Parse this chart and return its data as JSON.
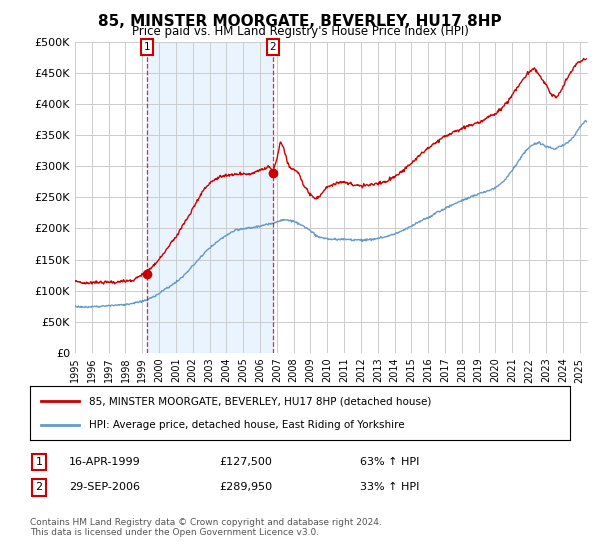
{
  "title": "85, MINSTER MOORGATE, BEVERLEY, HU17 8HP",
  "subtitle": "Price paid vs. HM Land Registry's House Price Index (HPI)",
  "red_label": "85, MINSTER MOORGATE, BEVERLEY, HU17 8HP (detached house)",
  "blue_label": "HPI: Average price, detached house, East Riding of Yorkshire",
  "annotation1_label": "1",
  "annotation1_date": "16-APR-1999",
  "annotation1_price": "£127,500",
  "annotation1_hpi": "63% ↑ HPI",
  "annotation2_label": "2",
  "annotation2_date": "29-SEP-2006",
  "annotation2_price": "£289,950",
  "annotation2_hpi": "33% ↑ HPI",
  "footnote": "Contains HM Land Registry data © Crown copyright and database right 2024.\nThis data is licensed under the Open Government Licence v3.0.",
  "ylim": [
    0,
    500000
  ],
  "yticks": [
    0,
    50000,
    100000,
    150000,
    200000,
    250000,
    300000,
    350000,
    400000,
    450000,
    500000
  ],
  "red_color": "#cc0000",
  "blue_color": "#6699cc",
  "shade_color": "#ddeeff",
  "background_color": "#ffffff",
  "grid_color": "#cccccc",
  "sale1_year": 1999.29,
  "sale1_price": 127500,
  "sale2_year": 2006.75,
  "sale2_price": 289950,
  "blue_keypoints": [
    [
      1995.0,
      72000
    ],
    [
      1995.5,
      71000
    ],
    [
      1996.0,
      72000
    ],
    [
      1996.5,
      73000
    ],
    [
      1997.0,
      74000
    ],
    [
      1997.5,
      75000
    ],
    [
      1998.0,
      76000
    ],
    [
      1998.5,
      78000
    ],
    [
      1999.0,
      80000
    ],
    [
      1999.5,
      85000
    ],
    [
      2000.0,
      93000
    ],
    [
      2000.5,
      102000
    ],
    [
      2001.0,
      112000
    ],
    [
      2001.5,
      123000
    ],
    [
      2002.0,
      138000
    ],
    [
      2002.5,
      153000
    ],
    [
      2003.0,
      167000
    ],
    [
      2003.5,
      178000
    ],
    [
      2004.0,
      188000
    ],
    [
      2004.5,
      195000
    ],
    [
      2005.0,
      198000
    ],
    [
      2005.5,
      200000
    ],
    [
      2006.0,
      202000
    ],
    [
      2006.5,
      205000
    ],
    [
      2007.0,
      210000
    ],
    [
      2007.5,
      213000
    ],
    [
      2008.0,
      210000
    ],
    [
      2008.5,
      205000
    ],
    [
      2009.0,
      195000
    ],
    [
      2009.5,
      185000
    ],
    [
      2010.0,
      183000
    ],
    [
      2010.5,
      182000
    ],
    [
      2011.0,
      183000
    ],
    [
      2011.5,
      182000
    ],
    [
      2012.0,
      182000
    ],
    [
      2012.5,
      183000
    ],
    [
      2013.0,
      185000
    ],
    [
      2013.5,
      188000
    ],
    [
      2014.0,
      193000
    ],
    [
      2014.5,
      198000
    ],
    [
      2015.0,
      205000
    ],
    [
      2015.5,
      213000
    ],
    [
      2016.0,
      220000
    ],
    [
      2016.5,
      228000
    ],
    [
      2017.0,
      235000
    ],
    [
      2017.5,
      242000
    ],
    [
      2018.0,
      248000
    ],
    [
      2018.5,
      253000
    ],
    [
      2019.0,
      257000
    ],
    [
      2019.5,
      262000
    ],
    [
      2020.0,
      267000
    ],
    [
      2020.5,
      278000
    ],
    [
      2021.0,
      295000
    ],
    [
      2021.5,
      315000
    ],
    [
      2022.0,
      332000
    ],
    [
      2022.5,
      340000
    ],
    [
      2023.0,
      335000
    ],
    [
      2023.5,
      330000
    ],
    [
      2024.0,
      335000
    ],
    [
      2024.5,
      345000
    ],
    [
      2025.0,
      365000
    ],
    [
      2025.3,
      375000
    ]
  ],
  "red_keypoints": [
    [
      1995.0,
      108000
    ],
    [
      1995.5,
      107000
    ],
    [
      1996.0,
      108000
    ],
    [
      1996.5,
      109000
    ],
    [
      1997.0,
      109000
    ],
    [
      1997.5,
      110000
    ],
    [
      1998.0,
      111000
    ],
    [
      1998.5,
      112000
    ],
    [
      1999.29,
      127500
    ],
    [
      1999.5,
      130000
    ],
    [
      2000.0,
      145000
    ],
    [
      2000.5,
      163000
    ],
    [
      2001.0,
      182000
    ],
    [
      2001.5,
      205000
    ],
    [
      2002.0,
      228000
    ],
    [
      2002.5,
      252000
    ],
    [
      2003.0,
      268000
    ],
    [
      2003.5,
      278000
    ],
    [
      2004.0,
      283000
    ],
    [
      2004.5,
      285000
    ],
    [
      2005.0,
      285000
    ],
    [
      2005.5,
      287000
    ],
    [
      2006.0,
      292000
    ],
    [
      2006.5,
      300000
    ],
    [
      2006.75,
      289950
    ],
    [
      2007.0,
      310000
    ],
    [
      2007.2,
      338000
    ],
    [
      2007.4,
      330000
    ],
    [
      2007.6,
      310000
    ],
    [
      2007.8,
      295000
    ],
    [
      2008.0,
      295000
    ],
    [
      2008.3,
      290000
    ],
    [
      2008.6,
      270000
    ],
    [
      2009.0,
      255000
    ],
    [
      2009.3,
      248000
    ],
    [
      2009.5,
      252000
    ],
    [
      2009.7,
      258000
    ],
    [
      2010.0,
      268000
    ],
    [
      2010.5,
      272000
    ],
    [
      2011.0,
      275000
    ],
    [
      2011.5,
      272000
    ],
    [
      2012.0,
      270000
    ],
    [
      2012.5,
      272000
    ],
    [
      2013.0,
      275000
    ],
    [
      2013.5,
      278000
    ],
    [
      2014.0,
      285000
    ],
    [
      2014.5,
      295000
    ],
    [
      2015.0,
      308000
    ],
    [
      2015.5,
      320000
    ],
    [
      2016.0,
      332000
    ],
    [
      2016.5,
      343000
    ],
    [
      2017.0,
      352000
    ],
    [
      2017.5,
      360000
    ],
    [
      2018.0,
      365000
    ],
    [
      2018.5,
      370000
    ],
    [
      2019.0,
      375000
    ],
    [
      2019.5,
      382000
    ],
    [
      2020.0,
      388000
    ],
    [
      2020.5,
      400000
    ],
    [
      2021.0,
      418000
    ],
    [
      2021.5,
      438000
    ],
    [
      2022.0,
      455000
    ],
    [
      2022.3,
      460000
    ],
    [
      2022.6,
      450000
    ],
    [
      2023.0,
      435000
    ],
    [
      2023.3,
      420000
    ],
    [
      2023.6,
      415000
    ],
    [
      2024.0,
      430000
    ],
    [
      2024.3,
      448000
    ],
    [
      2024.6,
      460000
    ],
    [
      2024.9,
      470000
    ],
    [
      2025.3,
      475000
    ]
  ]
}
